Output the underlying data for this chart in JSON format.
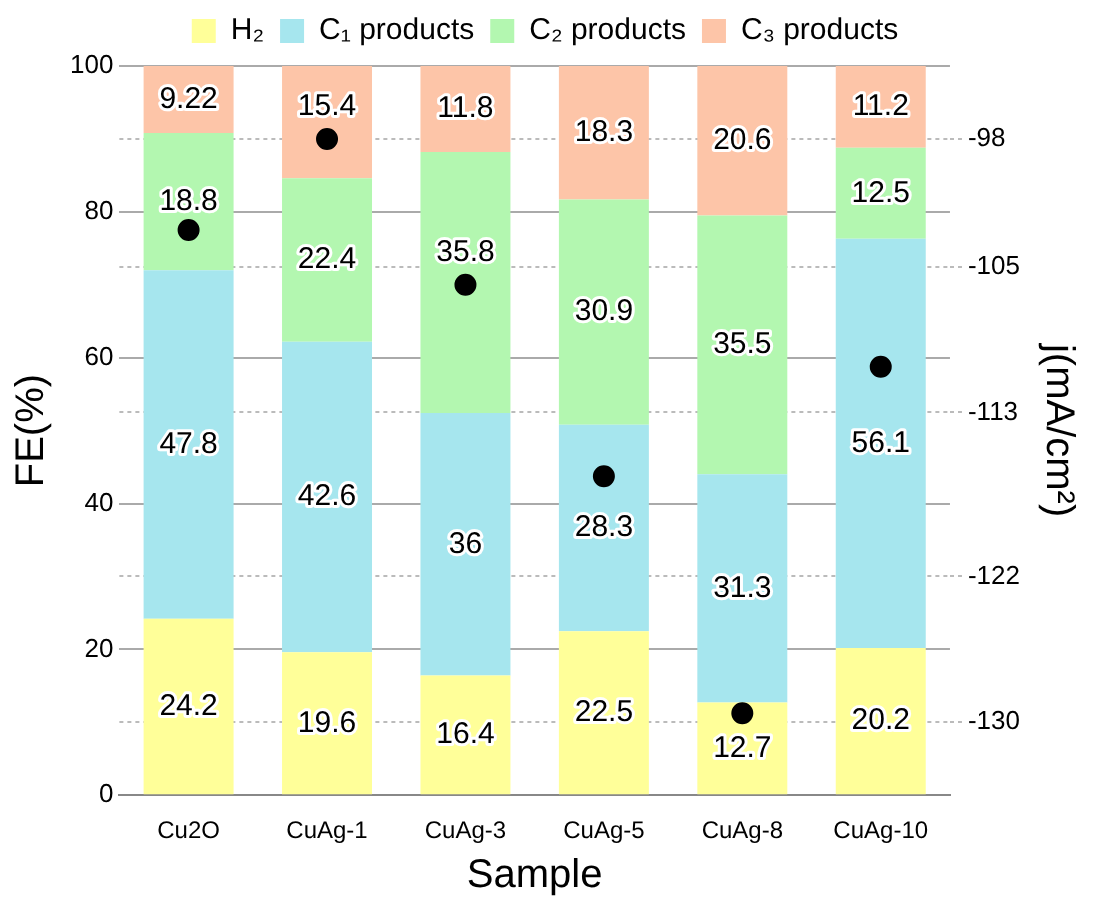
{
  "chart_data": {
    "type": "bar",
    "stacked": true,
    "xlabel": "Sample",
    "ylabel": "FE(%)",
    "y2label": "j(mA/cm²)",
    "categories": [
      "Cu2O",
      "CuAg-1",
      "CuAg-3",
      "CuAg-5",
      "CuAg-8",
      "CuAg-10"
    ],
    "series": [
      {
        "name": "H₂",
        "color": "#ffff99",
        "values": [
          24.2,
          19.6,
          16.4,
          22.5,
          12.7,
          20.2
        ],
        "value_labels": [
          "24.2",
          "19.6",
          "16.4",
          "22.5",
          "12.7",
          "20.2"
        ]
      },
      {
        "name": "C₁ products",
        "color": "#a6e6ee",
        "values": [
          47.8,
          42.6,
          36,
          28.3,
          31.3,
          56.1
        ],
        "value_labels": [
          "47.8",
          "42.6",
          "36",
          "28.3",
          "31.3",
          "56.1"
        ]
      },
      {
        "name": "C₂ products",
        "color": "#b3f7b0",
        "values": [
          18.8,
          22.4,
          35.8,
          30.9,
          35.5,
          12.5
        ],
        "value_labels": [
          "18.8",
          "22.4",
          "35.8",
          "30.9",
          "35.5",
          "12.5"
        ]
      },
      {
        "name": "C₃ products",
        "color": "#fdc5a8",
        "values": [
          9.22,
          15.4,
          11.8,
          18.3,
          20.6,
          11.2
        ],
        "value_labels": [
          "9.22",
          "15.4",
          "11.8",
          "18.3",
          "20.6",
          "11.2"
        ]
      },
      {
        "type": "scatter",
        "axis": "y2",
        "color": "#000000",
        "marker": "circle",
        "values": [
          -103,
          -98,
          -106,
          -116.5,
          -129.5,
          -110.5
        ]
      }
    ],
    "ylim": [
      0,
      100
    ],
    "yticks": [
      0,
      20,
      40,
      60,
      80,
      100
    ],
    "y2lim": [
      -134,
      -94
    ],
    "y2ticks": [
      -98,
      -105,
      -113,
      -122,
      -130
    ],
    "grid": "y",
    "legend": "top"
  }
}
